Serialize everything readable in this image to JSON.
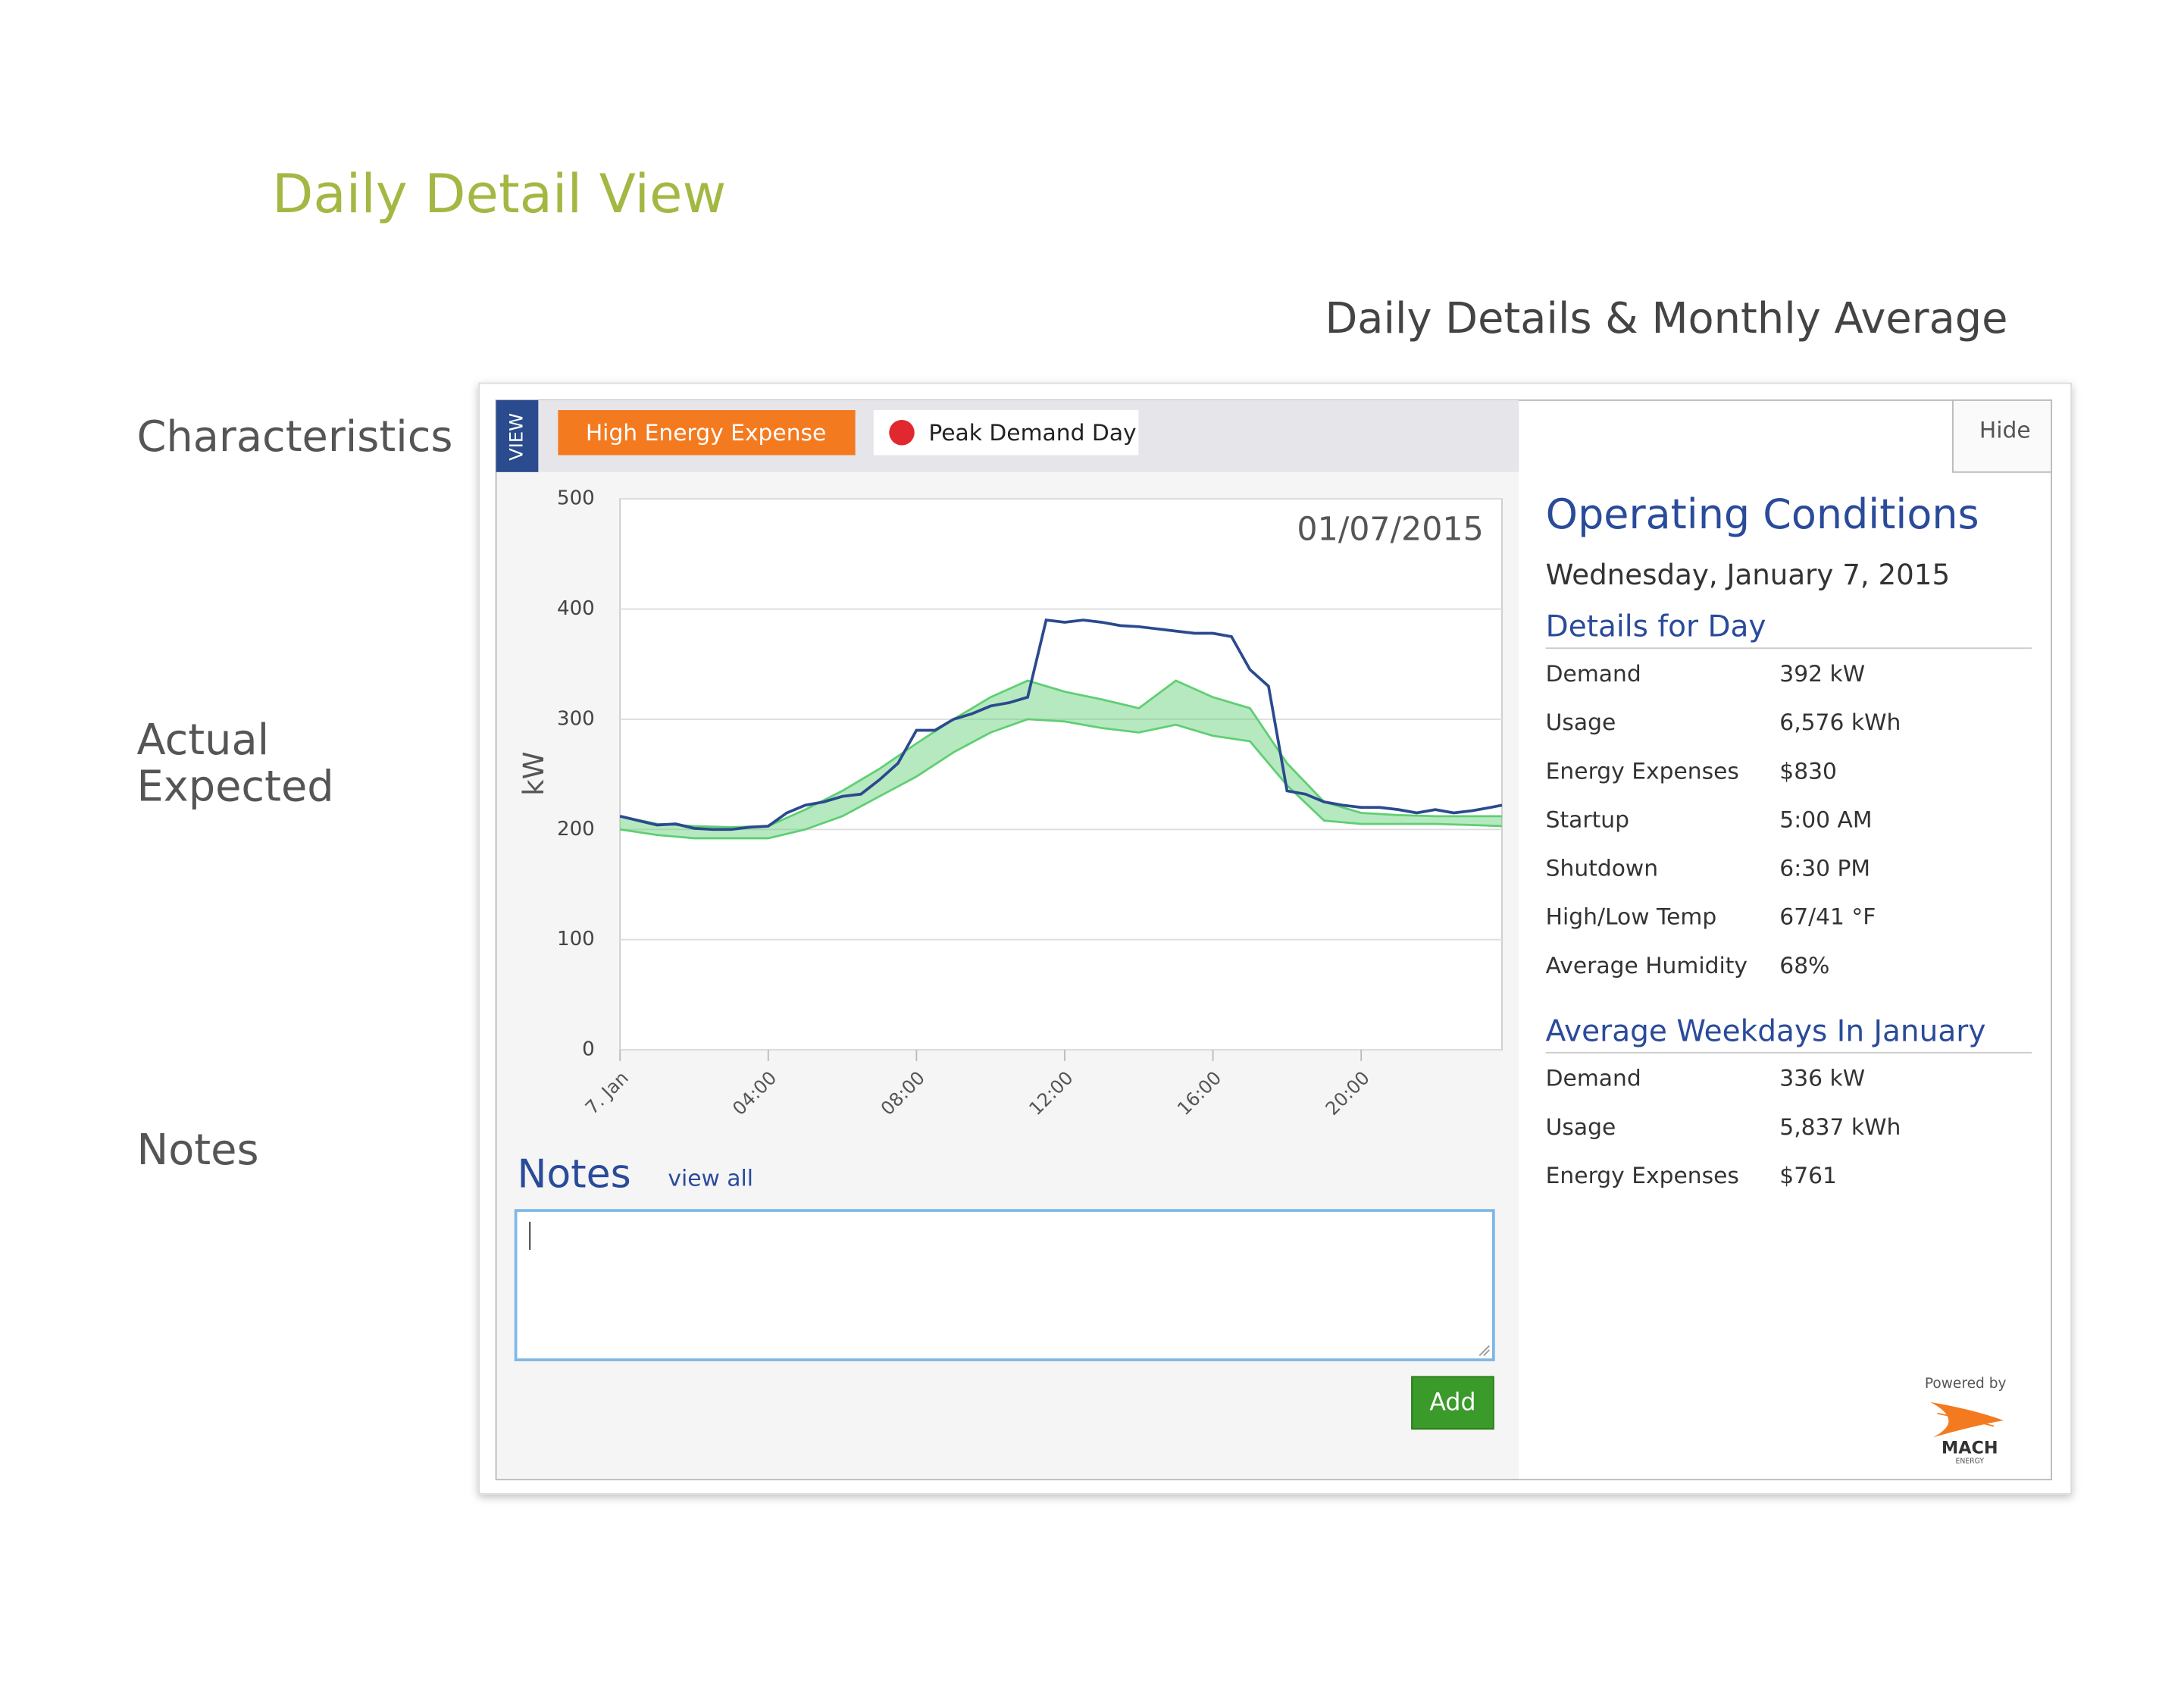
{
  "page": {
    "title": "Daily Detail View",
    "subtitle": "Daily Details & Monthly Average",
    "annotations": [
      "Characteristics",
      "Actual",
      "Expected",
      "Notes"
    ]
  },
  "panel": {
    "tab": "VIEW",
    "tags": [
      "High Energy Expense",
      "Peak Demand Day"
    ],
    "hide": "Hide",
    "notes": {
      "title": "Notes",
      "link": "view all",
      "button": "Add"
    },
    "conditions": {
      "title": "Operating Conditions",
      "date": "Wednesday, January 7, 2015",
      "day": {
        "heading": "Details for Day",
        "rows": [
          [
            "Demand",
            "392 kW"
          ],
          [
            "Usage",
            "6,576 kWh"
          ],
          [
            "Energy Expenses",
            "$830"
          ],
          [
            "Startup",
            "5:00 AM"
          ],
          [
            "Shutdown",
            "6:30 PM"
          ],
          [
            "High/Low Temp",
            "67/41 °F"
          ],
          [
            "Average Humidity",
            "68%"
          ]
        ]
      },
      "average": {
        "heading": "Average Weekdays In January",
        "rows": [
          [
            "Demand",
            "336 kW"
          ],
          [
            "Usage",
            "5,837 kWh"
          ],
          [
            "Energy Expenses",
            "$761"
          ]
        ]
      }
    },
    "powered_by": "Powered by",
    "brand": "MACH",
    "brand_sub": "ENERGY"
  },
  "chart_data": {
    "type": "line",
    "title": "01/07/2015",
    "y_label": "kW",
    "xlim": [
      0,
      23.8
    ],
    "ylim": [
      0,
      500
    ],
    "yticks": [
      0,
      100,
      200,
      300,
      400,
      500
    ],
    "xticks": [
      {
        "value": 0,
        "label": "7. Jan"
      },
      {
        "value": 4,
        "label": "04:00"
      },
      {
        "value": 8,
        "label": "08:00"
      },
      {
        "value": 12,
        "label": "12:00"
      },
      {
        "value": 16,
        "label": "16:00"
      },
      {
        "value": 20,
        "label": "20:00"
      }
    ],
    "grid": true,
    "series": [
      {
        "type": "band",
        "color": "#5fcf74",
        "x": [
          0,
          1,
          2,
          3,
          4,
          5,
          6,
          7,
          8,
          9,
          10,
          11,
          12,
          13,
          14,
          15,
          16,
          17,
          18,
          19,
          20,
          21,
          22,
          23,
          23.8
        ],
        "low": [
          200,
          195,
          192,
          192,
          192,
          200,
          212,
          230,
          248,
          270,
          288,
          300,
          298,
          292,
          288,
          295,
          285,
          280,
          240,
          208,
          205,
          205,
          205,
          204,
          203
        ],
        "high": [
          212,
          205,
          203,
          202,
          203,
          218,
          235,
          255,
          278,
          300,
          320,
          335,
          325,
          318,
          310,
          335,
          320,
          310,
          260,
          225,
          215,
          213,
          212,
          212,
          212
        ]
      },
      {
        "color": "#2b4a8e",
        "x": [
          0,
          0.5,
          1,
          1.5,
          2,
          2.5,
          3,
          3.5,
          4,
          4.5,
          5,
          5.5,
          6,
          6.5,
          7,
          7.5,
          8,
          8.5,
          9,
          9.5,
          10,
          10.5,
          11,
          11.5,
          12,
          12.5,
          13,
          13.5,
          14,
          14.5,
          15,
          15.5,
          16,
          16.5,
          17,
          17.5,
          18,
          18.5,
          19,
          19.5,
          20,
          20.5,
          21,
          21.5,
          22,
          22.5,
          23,
          23.5,
          23.8
        ],
        "values": [
          212,
          208,
          204,
          205,
          201,
          200,
          200,
          202,
          203,
          215,
          222,
          225,
          230,
          232,
          245,
          260,
          290,
          290,
          300,
          305,
          312,
          315,
          320,
          390,
          388,
          390,
          388,
          385,
          384,
          382,
          380,
          378,
          378,
          375,
          345,
          330,
          235,
          232,
          225,
          222,
          220,
          220,
          218,
          215,
          218,
          215,
          217,
          220,
          222
        ]
      }
    ]
  }
}
